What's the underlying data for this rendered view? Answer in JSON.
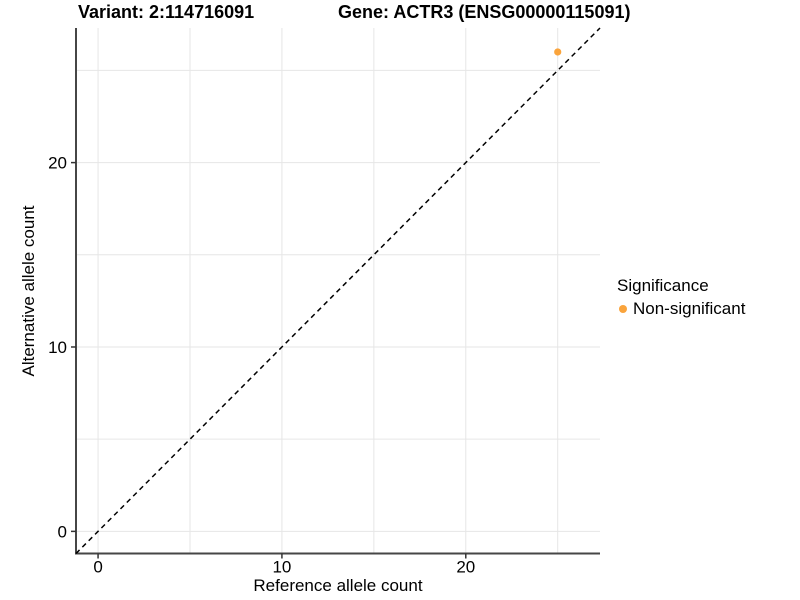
{
  "chart_data": {
    "type": "scatter",
    "title": "Variant: 2:114716091",
    "subtitle": "Gene: ACTR3 (ENSG00000115091)",
    "xlabel": "Reference allele count",
    "ylabel": "Alternative allele count",
    "xlim": [
      -1.2,
      27.3
    ],
    "ylim": [
      -1.2,
      27.3
    ],
    "xticks": [
      0,
      10,
      20
    ],
    "yticks": [
      0,
      10,
      20
    ],
    "gridlines": [
      0,
      5,
      10,
      15,
      20,
      25
    ],
    "grid": true,
    "series": [
      {
        "name": "Non-significant",
        "color": "#FAA43C",
        "points": [
          {
            "x": 25,
            "y": 26
          }
        ]
      }
    ],
    "reference_line": {
      "type": "identity",
      "equation": "y = x",
      "style": "dashed",
      "color": "#000000"
    },
    "legend": {
      "title": "Significance",
      "position": "right",
      "items": [
        {
          "label": "Non-significant",
          "color": "#FAA43C"
        }
      ]
    },
    "colors": {
      "background": "#ffffff",
      "grid": "#e6e6e6",
      "axis_line": "#464646",
      "tick": "#333333",
      "point": "#FAA43C"
    }
  }
}
